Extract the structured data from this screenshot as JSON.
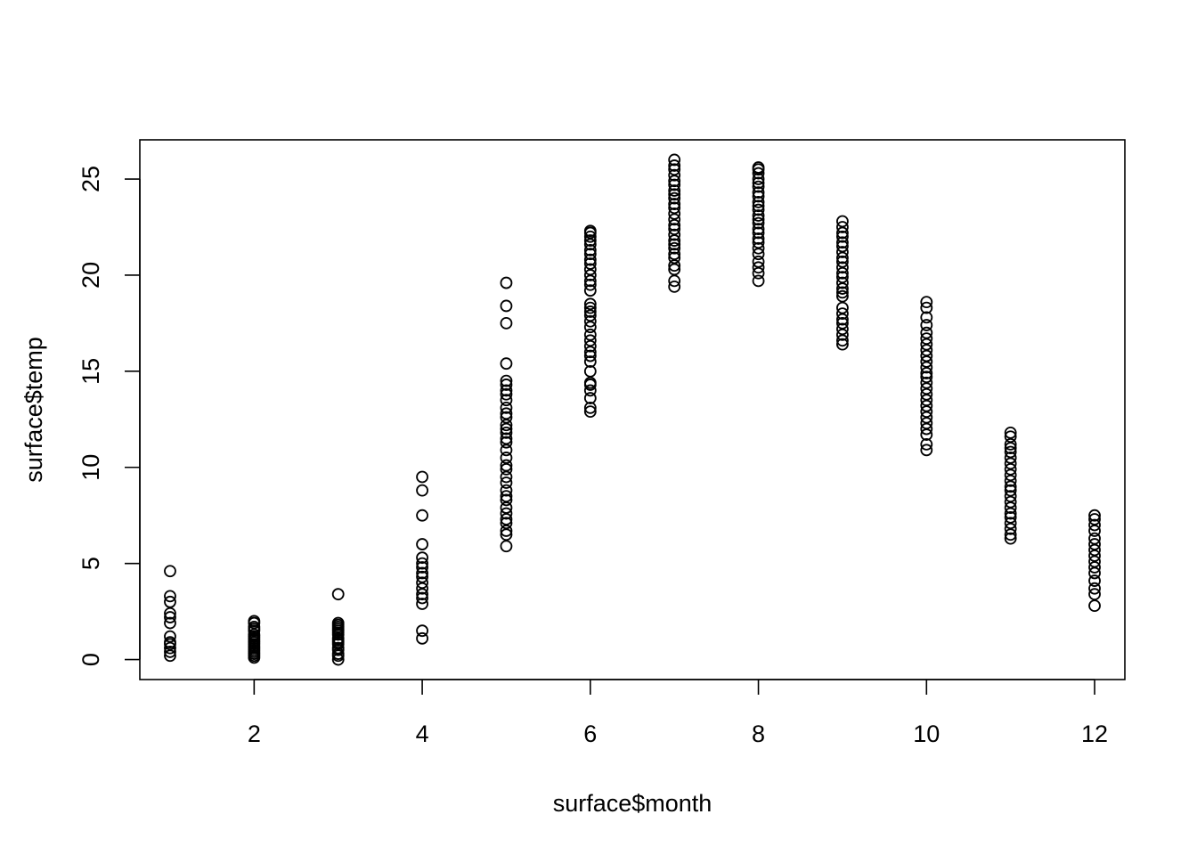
{
  "chart_data": {
    "type": "scatter",
    "xlabel": "surface$month",
    "ylabel": "surface$temp",
    "xlim": [
      0.64,
      12.36
    ],
    "ylim": [
      -1.04,
      27.04
    ],
    "x_ticks": [
      2,
      4,
      6,
      8,
      10,
      12
    ],
    "x_tick_labels": [
      "2",
      "4",
      "6",
      "8",
      "10",
      "12"
    ],
    "y_ticks": [
      0,
      5,
      10,
      15,
      20,
      25
    ],
    "y_tick_labels": [
      "0",
      "5",
      "10",
      "15",
      "20",
      "25"
    ],
    "grid": false,
    "series": [
      {
        "points": [
          {
            "month": 1,
            "temp": [
              0.2,
              0.4,
              0.6,
              0.8,
              0.9,
              1.2,
              1.9,
              2.2,
              2.4,
              3.0,
              3.3,
              4.6
            ]
          },
          {
            "month": 2,
            "temp": [
              0.1,
              0.2,
              0.3,
              0.4,
              0.5,
              0.6,
              0.7,
              0.8,
              0.9,
              1.0,
              1.1,
              1.2,
              1.3,
              1.5,
              1.6,
              1.7,
              1.9,
              2.0
            ]
          },
          {
            "month": 3,
            "temp": [
              0.0,
              0.2,
              0.3,
              0.5,
              0.6,
              0.8,
              0.9,
              1.0,
              1.1,
              1.3,
              1.4,
              1.5,
              1.6,
              1.7,
              1.8,
              1.9,
              3.4
            ]
          },
          {
            "month": 4,
            "temp": [
              1.1,
              1.5,
              2.9,
              3.2,
              3.4,
              3.7,
              4.0,
              4.3,
              4.5,
              4.8,
              5.0,
              5.3,
              6.0,
              7.5,
              8.8,
              9.5
            ]
          },
          {
            "month": 5,
            "temp": [
              5.9,
              6.5,
              6.7,
              7.1,
              7.3,
              7.6,
              7.9,
              8.3,
              8.5,
              8.8,
              9.2,
              9.5,
              9.9,
              10.1,
              10.5,
              10.9,
              11.3,
              11.5,
              11.8,
              12.0,
              12.2,
              12.6,
              12.8,
              13.1,
              13.5,
              13.8,
              14.0,
              14.3,
              14.5,
              15.4,
              17.5,
              18.4,
              19.6
            ]
          },
          {
            "month": 6,
            "temp": [
              12.9,
              13.1,
              13.6,
              14.0,
              14.3,
              14.4,
              15.0,
              15.5,
              15.8,
              16.0,
              16.3,
              16.6,
              16.9,
              17.3,
              17.6,
              17.9,
              18.1,
              18.3,
              18.5,
              19.2,
              19.5,
              19.7,
              20.0,
              20.3,
              20.6,
              20.8,
              21.1,
              21.3,
              21.6,
              21.8,
              22.0,
              22.2,
              22.3
            ]
          },
          {
            "month": 7,
            "temp": [
              19.4,
              19.7,
              20.3,
              20.5,
              20.9,
              21.1,
              21.4,
              21.6,
              21.8,
              22.1,
              22.4,
              22.6,
              22.9,
              23.2,
              23.5,
              23.7,
              24.0,
              24.2,
              24.4,
              24.7,
              24.9,
              25.2,
              25.5,
              25.7,
              26.0
            ]
          },
          {
            "month": 8,
            "temp": [
              19.7,
              20.1,
              20.4,
              20.7,
              21.1,
              21.4,
              21.7,
              21.9,
              22.2,
              22.4,
              22.7,
              22.9,
              23.1,
              23.4,
              23.6,
              23.8,
              24.1,
              24.3,
              24.6,
              24.8,
              25.0,
              25.3,
              25.5,
              25.6
            ]
          },
          {
            "month": 9,
            "temp": [
              16.4,
              16.6,
              16.9,
              17.2,
              17.5,
              17.7,
              18.0,
              18.3,
              18.9,
              19.1,
              19.3,
              19.6,
              19.9,
              20.1,
              20.4,
              20.7,
              20.9,
              21.2,
              21.5,
              21.7,
              22.0,
              22.2,
              22.5,
              22.8
            ]
          },
          {
            "month": 10,
            "temp": [
              10.9,
              11.2,
              11.7,
              12.0,
              12.3,
              12.6,
              12.9,
              13.2,
              13.5,
              13.8,
              14.1,
              14.4,
              14.7,
              14.9,
              15.2,
              15.5,
              15.8,
              16.1,
              16.4,
              16.7,
              17.0,
              17.4,
              17.8,
              18.3,
              18.6
            ]
          },
          {
            "month": 11,
            "temp": [
              6.3,
              6.5,
              6.8,
              7.1,
              7.4,
              7.6,
              7.9,
              8.2,
              8.5,
              8.8,
              9.0,
              9.3,
              9.6,
              9.9,
              10.2,
              10.5,
              10.8,
              11.0,
              11.2,
              11.6,
              11.8
            ]
          },
          {
            "month": 12,
            "temp": [
              2.8,
              3.4,
              3.7,
              4.1,
              4.5,
              4.8,
              5.1,
              5.4,
              5.7,
              6.0,
              6.3,
              6.7,
              7.0,
              7.3,
              7.5
            ]
          }
        ]
      }
    ]
  }
}
